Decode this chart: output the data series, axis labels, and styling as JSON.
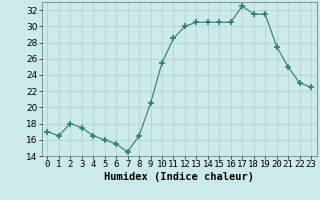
{
  "x": [
    0,
    1,
    2,
    3,
    4,
    5,
    6,
    7,
    8,
    9,
    10,
    11,
    12,
    13,
    14,
    15,
    16,
    17,
    18,
    19,
    20,
    21,
    22,
    23
  ],
  "y": [
    17.0,
    16.5,
    18.0,
    17.5,
    16.5,
    16.0,
    15.5,
    14.5,
    16.5,
    20.5,
    25.5,
    28.5,
    30.0,
    30.5,
    30.5,
    30.5,
    30.5,
    32.5,
    31.5,
    31.5,
    27.5,
    25.0,
    23.0,
    22.5
  ],
  "line_color": "#2e7d72",
  "marker": "+",
  "marker_size": 4,
  "bg_color": "#cceaea",
  "grid_color": "#b0cccc",
  "xlabel": "Humidex (Indice chaleur)",
  "ylim": [
    14,
    33
  ],
  "xlim": [
    -0.5,
    23.5
  ],
  "yticks": [
    14,
    16,
    18,
    20,
    22,
    24,
    26,
    28,
    30,
    32
  ],
  "xlabel_fontsize": 7.5,
  "tick_fontsize": 6.5
}
